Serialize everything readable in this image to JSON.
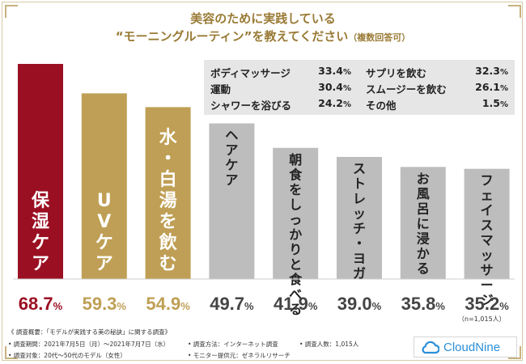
{
  "header": {
    "title_line1": "美容のために実践している",
    "title_line2": "“モーニングルーティン”を教えてください",
    "title_note": "（複数回答可）"
  },
  "chart_data": {
    "type": "bar",
    "categories": [
      "保湿ケア",
      "UVケア",
      "水・白湯を飲む",
      "ヘアケア",
      "朝食をしっかりと食べる",
      "ストレッチ・ヨガ",
      "お風呂に浸かる",
      "フェイスマッサージ"
    ],
    "values": [
      68.7,
      59.3,
      54.9,
      49.7,
      41.9,
      39.0,
      35.8,
      35.2
    ],
    "value_labels": [
      "68.7",
      "59.3",
      "54.9",
      "49.7",
      "41.9",
      "39.0",
      "35.8",
      "35.2"
    ],
    "unit": "%",
    "ylim": [
      0,
      72
    ],
    "bar_colors": [
      "#9b0f22",
      "#bf9f55",
      "#bf9f55",
      "#bdbdbd",
      "#bdbdbd",
      "#bdbdbd",
      "#bdbdbd",
      "#bdbdbd"
    ],
    "value_colors": [
      "#9b0f22",
      "#bf9f55",
      "#bf9f55",
      "#444444",
      "#444444",
      "#444444",
      "#444444",
      "#444444"
    ],
    "sample_size": "（n=1,015人）"
  },
  "others": [
    {
      "label": "ボディマッサージ",
      "value": "33.4",
      "unit": "%"
    },
    {
      "label": "サプリを飲む",
      "value": "32.3",
      "unit": "%"
    },
    {
      "label": "運動",
      "value": "30.4",
      "unit": "%"
    },
    {
      "label": "スムージーを飲む",
      "value": "26.1",
      "unit": "%"
    },
    {
      "label": "シャワーを浴びる",
      "value": "24.2",
      "unit": "%"
    },
    {
      "label": "その他",
      "value": "1.5",
      "unit": "%"
    }
  ],
  "footer": {
    "heading": "《 調査概要：「モデルが実践する美の秘訣」に関する調査》",
    "period": "• 調査期間：2021年7月5日（月）～2021年7月7日（水）",
    "method": "• 調査方法：インターネット調査",
    "count": "• 調査人数：1,015人",
    "target": "• 調査対象：20代～50代のモデル（女性）",
    "provider": "• モニター提供元：ゼネラルリサーチ"
  },
  "logo": {
    "text": "CloudNine",
    "icon": "cloud-icon",
    "color": "#2a8fd8"
  }
}
